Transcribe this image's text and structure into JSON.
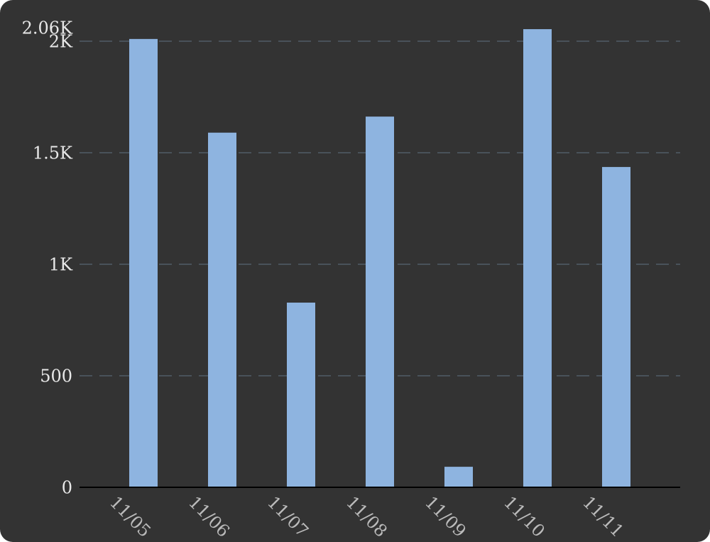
{
  "chart_data": {
    "type": "bar",
    "categories": [
      "11/05",
      "11/06",
      "11/07",
      "11/08",
      "11/09",
      "11/10",
      "11/11"
    ],
    "values": [
      2010,
      1590,
      828,
      1662,
      92,
      2054,
      1436
    ],
    "color": "#8eb4e0",
    "ylim": [
      0,
      2060
    ],
    "yticks": [
      0,
      500,
      {
        "value": 1000,
        "label": "1K"
      },
      {
        "value": 1500,
        "label": "1.5K"
      },
      {
        "value": 2000,
        "label": "2K"
      },
      {
        "value": 2060,
        "label": "2.06K"
      }
    ],
    "grid": true
  }
}
